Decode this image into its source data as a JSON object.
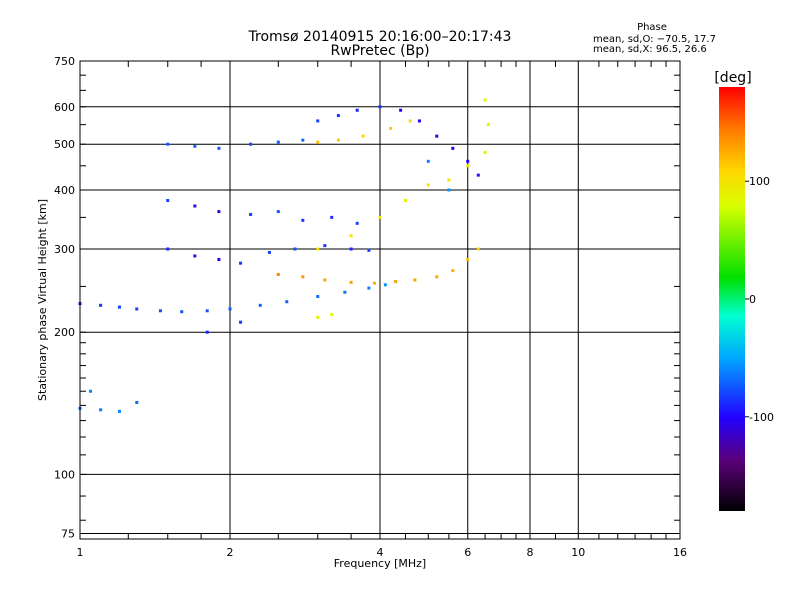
{
  "chart_data": {
    "type": "scatter",
    "title": "Tromsø 20140915 20:16:00–20:17:43",
    "subtitle": "RwPretec (Bp)",
    "xlabel": "Frequency [MHz]",
    "ylabel": "Stationary phase Virtual Height [km]",
    "x_scale": "log2",
    "y_scale": "log",
    "xlim": [
      1,
      16
    ],
    "ylim": [
      73,
      750
    ],
    "x_ticks": [
      1,
      2,
      4,
      6,
      8,
      10,
      16
    ],
    "y_ticks": [
      75,
      100,
      200,
      300,
      400,
      500,
      600,
      750
    ],
    "grid": true,
    "colorbar": {
      "label": "[deg]",
      "min": -180,
      "max": 180,
      "ticks": [
        100,
        0,
        -100
      ],
      "colormap": "rainbow: black-violet-blue-cyan-green-yellow-orange-red"
    },
    "stats": {
      "heading": "Phase",
      "line_o": "mean, sd,O: −70.5, 17.7",
      "line_x": "mean, sd,X:  96.5, 26.6"
    },
    "series": [
      {
        "name": "O",
        "points": [
          [
            1.0,
            230,
            -90
          ],
          [
            1.1,
            228,
            -85
          ],
          [
            1.2,
            226,
            -80
          ],
          [
            1.3,
            224,
            -82
          ],
          [
            1.45,
            222,
            -78
          ],
          [
            1.6,
            221,
            -75
          ],
          [
            1.8,
            222,
            -75
          ],
          [
            2.0,
            224,
            -72
          ],
          [
            2.3,
            228,
            -70
          ],
          [
            2.6,
            232,
            -70
          ],
          [
            3.0,
            238,
            -68
          ],
          [
            3.4,
            243,
            -65
          ],
          [
            3.8,
            248,
            -60
          ],
          [
            4.1,
            252,
            -55
          ],
          [
            4.3,
            256,
            -50
          ],
          [
            1.0,
            138,
            -65
          ],
          [
            1.1,
            137,
            -62
          ],
          [
            1.2,
            136,
            -60
          ],
          [
            1.3,
            142,
            -68
          ],
          [
            1.05,
            150,
            -60
          ],
          [
            1.5,
            300,
            -90
          ],
          [
            1.7,
            290,
            -95
          ],
          [
            1.9,
            285,
            -100
          ],
          [
            2.1,
            280,
            -85
          ],
          [
            2.4,
            295,
            -80
          ],
          [
            2.7,
            300,
            -75
          ],
          [
            3.1,
            305,
            -85
          ],
          [
            3.5,
            300,
            -90
          ],
          [
            3.8,
            298,
            -80
          ],
          [
            1.5,
            380,
            -80
          ],
          [
            1.7,
            370,
            -95
          ],
          [
            1.9,
            360,
            -110
          ],
          [
            2.2,
            355,
            -80
          ],
          [
            2.5,
            360,
            -75
          ],
          [
            2.8,
            345,
            -85
          ],
          [
            3.2,
            350,
            -85
          ],
          [
            3.6,
            340,
            -80
          ],
          [
            1.5,
            500,
            -75
          ],
          [
            1.7,
            495,
            -70
          ],
          [
            1.9,
            490,
            -75
          ],
          [
            2.2,
            500,
            -80
          ],
          [
            2.5,
            505,
            -72
          ],
          [
            2.8,
            510,
            -70
          ],
          [
            3.0,
            560,
            -80
          ],
          [
            3.3,
            575,
            -85
          ],
          [
            3.6,
            590,
            -90
          ],
          [
            4.0,
            600,
            -85
          ],
          [
            4.4,
            590,
            -100
          ],
          [
            4.8,
            560,
            -105
          ],
          [
            5.2,
            520,
            -110
          ],
          [
            5.6,
            490,
            -105
          ],
          [
            6.0,
            460,
            -100
          ],
          [
            6.3,
            430,
            -95
          ],
          [
            1.8,
            200,
            -90
          ],
          [
            2.1,
            210,
            -85
          ],
          [
            5.0,
            460,
            -60
          ],
          [
            5.5,
            400,
            -55
          ]
        ]
      },
      {
        "name": "X",
        "points": [
          [
            2.5,
            265,
            140
          ],
          [
            2.8,
            262,
            135
          ],
          [
            3.1,
            258,
            130
          ],
          [
            3.5,
            255,
            130
          ],
          [
            3.9,
            254,
            125
          ],
          [
            4.3,
            256,
            128
          ],
          [
            4.7,
            258,
            130
          ],
          [
            5.2,
            262,
            128
          ],
          [
            5.6,
            270,
            125
          ],
          [
            6.0,
            285,
            120
          ],
          [
            6.3,
            300,
            115
          ],
          [
            3.0,
            300,
            105
          ],
          [
            3.5,
            320,
            100
          ],
          [
            4.0,
            350,
            100
          ],
          [
            4.5,
            380,
            95
          ],
          [
            5.0,
            410,
            100
          ],
          [
            5.5,
            420,
            95
          ],
          [
            6.0,
            450,
            95
          ],
          [
            6.5,
            480,
            90
          ],
          [
            6.6,
            550,
            90
          ],
          [
            6.5,
            620,
            85
          ],
          [
            3.0,
            505,
            120
          ],
          [
            3.3,
            510,
            115
          ],
          [
            3.7,
            520,
            110
          ],
          [
            4.2,
            540,
            115
          ],
          [
            4.6,
            560,
            110
          ],
          [
            3.0,
            215,
            90
          ],
          [
            3.2,
            218,
            85
          ]
        ]
      }
    ]
  }
}
